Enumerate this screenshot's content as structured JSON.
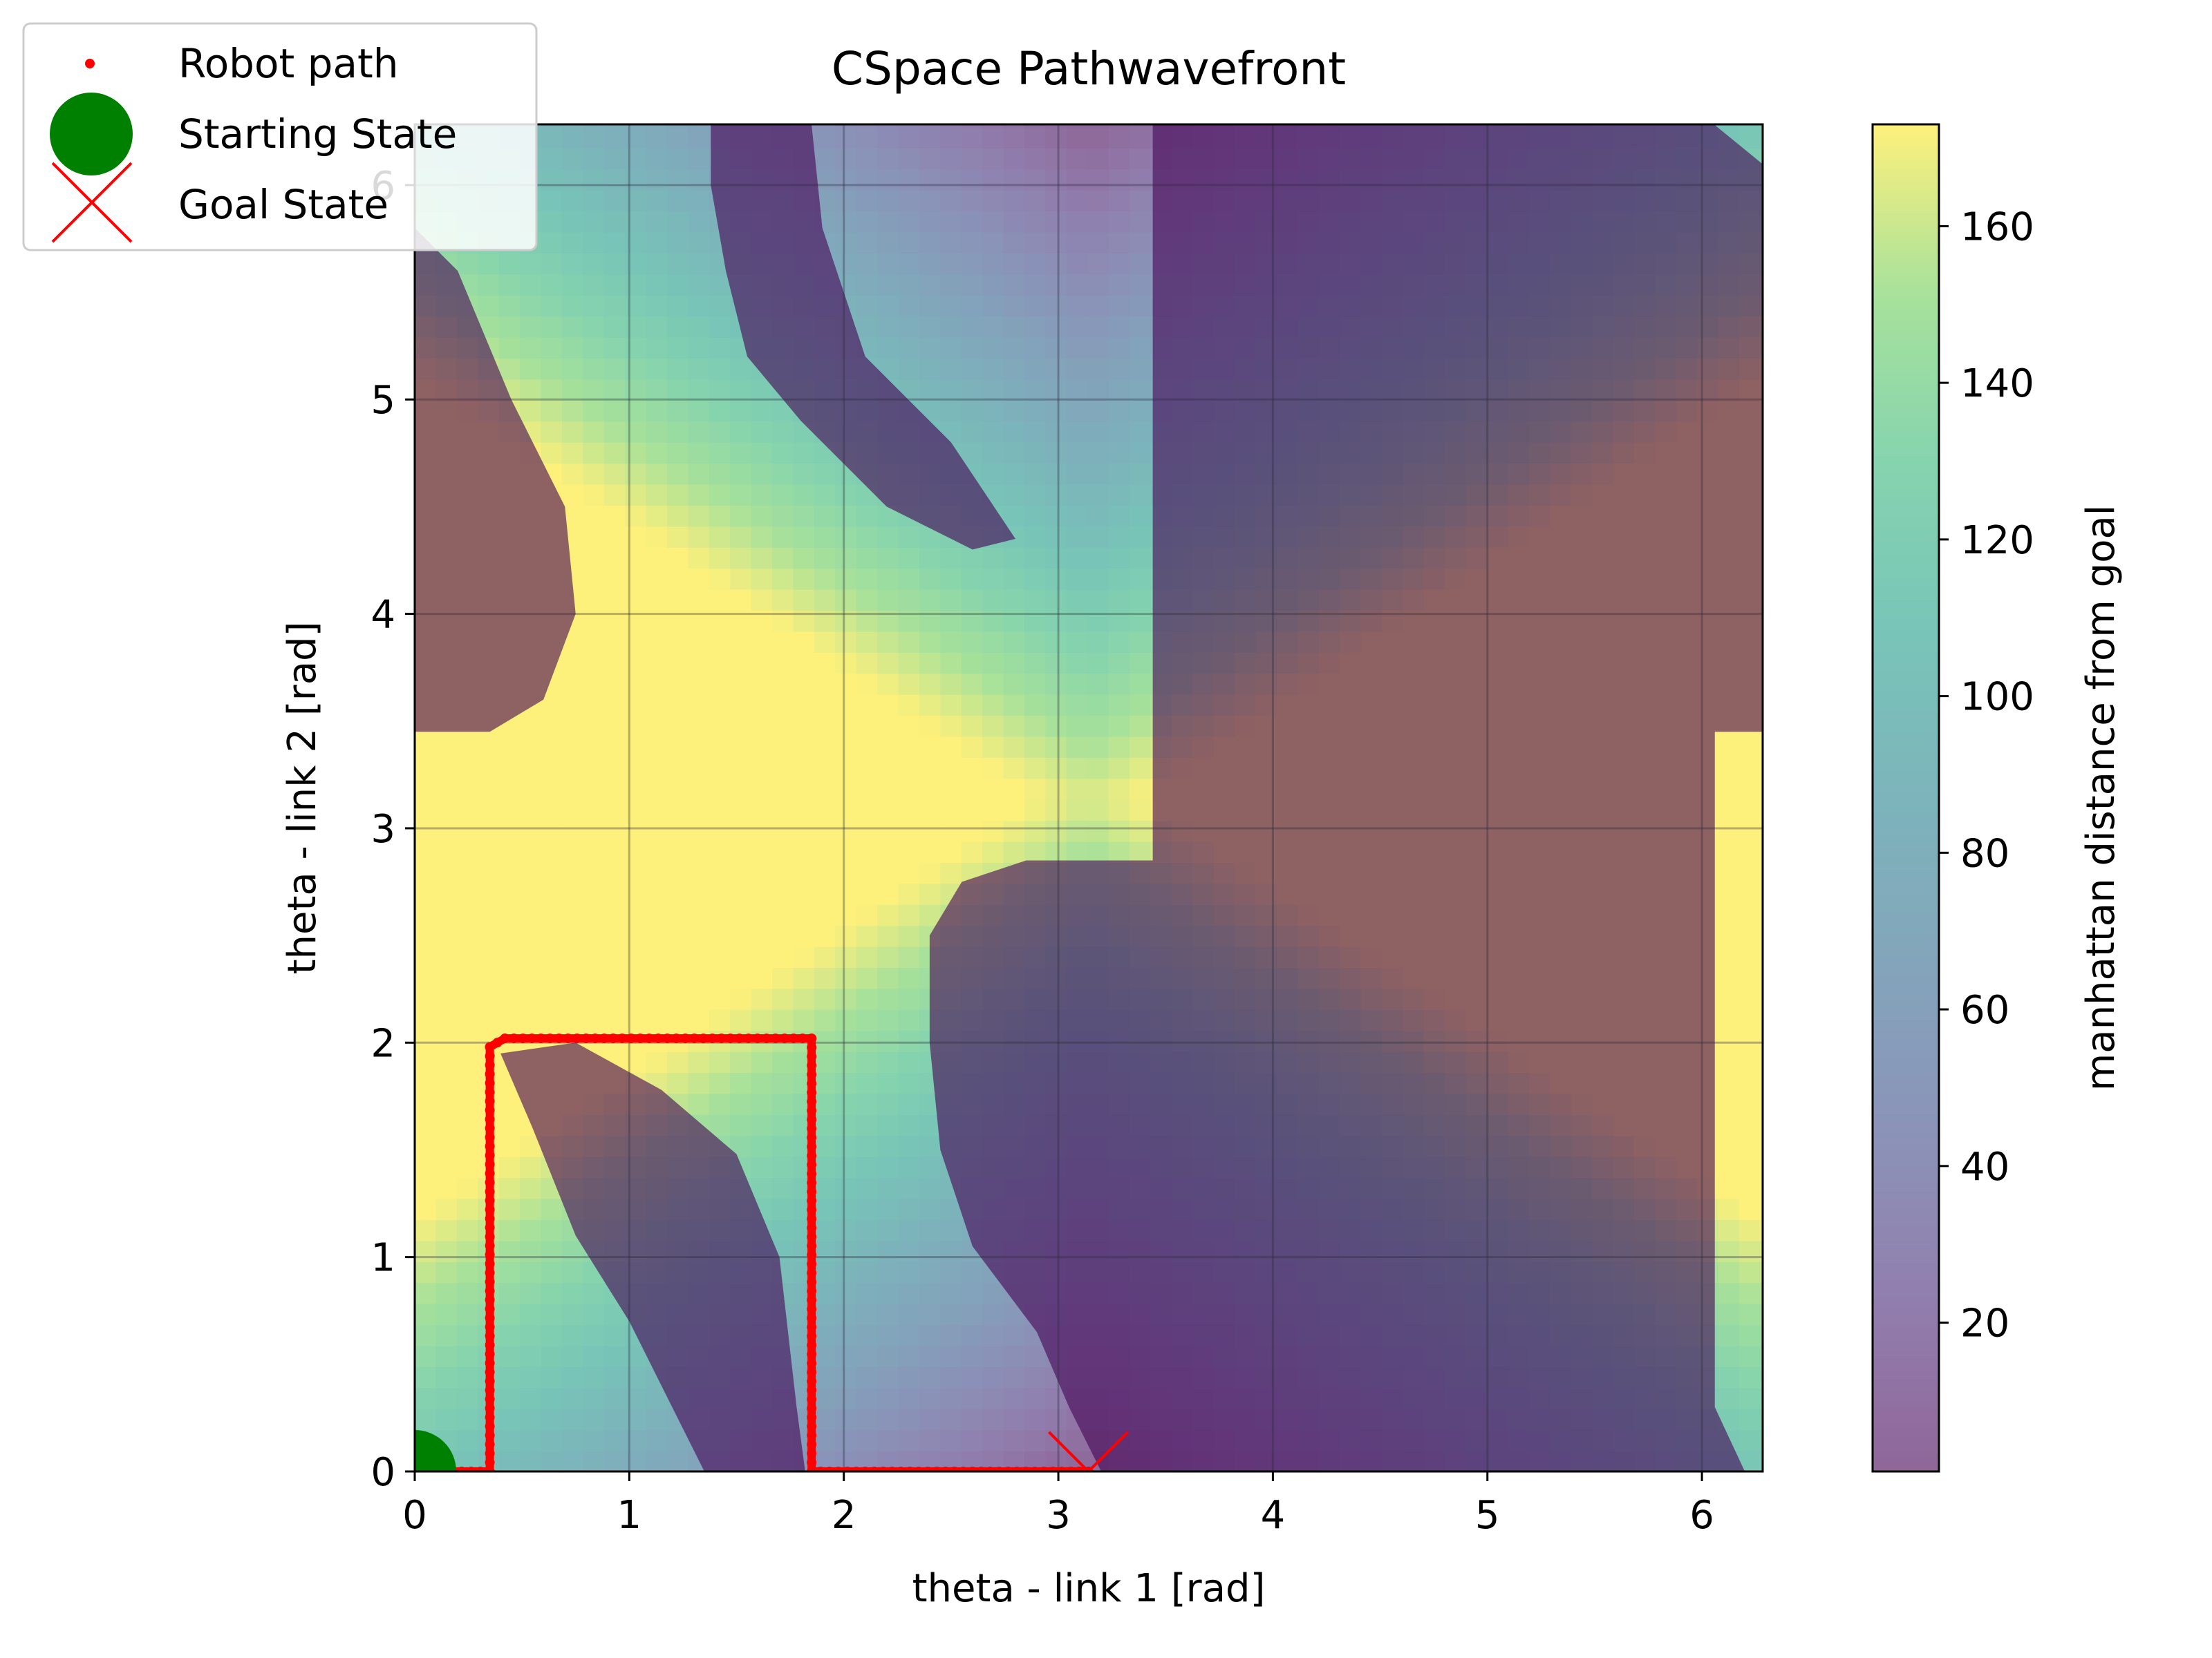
{
  "chart_data": {
    "type": "heatmap",
    "title": "CSpace Pathwavefront",
    "xlabel": "theta - link 1 [rad]",
    "ylabel": "theta - link 2 [rad]",
    "xlim": [
      0,
      6.2832
    ],
    "ylim": [
      0,
      6.2832
    ],
    "x_ticks": [
      0,
      1,
      2,
      3,
      4,
      5,
      6
    ],
    "y_ticks": [
      0,
      1,
      2,
      3,
      4,
      5,
      6
    ],
    "x_tick_labels": [
      "0",
      "1",
      "2",
      "3",
      "4",
      "5",
      "6"
    ],
    "y_tick_labels": [
      "0",
      "1",
      "2",
      "3",
      "4",
      "5",
      "6"
    ],
    "grid": true,
    "colormap": "viridis",
    "alpha": 0.6,
    "colorbar": {
      "label": "manhattan distance from goal",
      "range": [
        1,
        173
      ],
      "ticks": [
        20,
        40,
        60,
        80,
        100,
        120,
        140,
        160
      ],
      "tick_labels": [
        "20",
        "40",
        "60",
        "80",
        "100",
        "120",
        "140",
        "160"
      ]
    },
    "obstacle_value": 1,
    "obstacles": [
      {
        "name": "upper-left-obstacle",
        "polygon": [
          [
            0,
            5.8
          ],
          [
            0.2,
            5.6
          ],
          [
            0.45,
            5.0
          ],
          [
            0.7,
            4.5
          ],
          [
            0.75,
            4.0
          ],
          [
            0.6,
            3.6
          ],
          [
            0.35,
            3.45
          ],
          [
            0,
            3.45
          ]
        ]
      },
      {
        "name": "top-middle-obstacle",
        "polygon": [
          [
            1.38,
            6.28
          ],
          [
            1.85,
            6.28
          ],
          [
            1.9,
            5.8
          ],
          [
            2.1,
            5.2
          ],
          [
            2.5,
            4.8
          ],
          [
            2.8,
            4.35
          ],
          [
            2.6,
            4.3
          ],
          [
            2.2,
            4.5
          ],
          [
            1.8,
            4.9
          ],
          [
            1.55,
            5.2
          ],
          [
            1.45,
            5.6
          ],
          [
            1.38,
            6.0
          ]
        ]
      },
      {
        "name": "center-band-obstacle",
        "polygon": [
          [
            0.4,
            1.95
          ],
          [
            0.75,
            2.0
          ],
          [
            1.15,
            1.78
          ],
          [
            1.5,
            1.48
          ],
          [
            1.7,
            1.0
          ],
          [
            1.78,
            0.3
          ],
          [
            1.82,
            0
          ],
          [
            1.35,
            0
          ],
          [
            1.2,
            0.3
          ],
          [
            1.0,
            0.7
          ],
          [
            0.75,
            1.1
          ],
          [
            0.55,
            1.6
          ]
        ]
      },
      {
        "name": "right-main-obstacle",
        "polygon": [
          [
            3.44,
            6.28
          ],
          [
            6.06,
            6.28
          ],
          [
            6.28,
            6.1
          ],
          [
            6.28,
            3.45
          ],
          [
            6.06,
            3.45
          ],
          [
            6.06,
            0.3
          ],
          [
            6.2,
            0
          ],
          [
            3.2,
            0
          ],
          [
            3.05,
            0.3
          ],
          [
            2.9,
            0.65
          ],
          [
            2.6,
            1.05
          ],
          [
            2.45,
            1.5
          ],
          [
            2.4,
            2.0
          ],
          [
            2.4,
            2.5
          ],
          [
            2.55,
            2.75
          ],
          [
            2.85,
            2.85
          ],
          [
            3.44,
            2.85
          ]
        ]
      }
    ],
    "series": [
      {
        "name": "Robot path",
        "type": "line",
        "color": "#ff0000",
        "marker": "dot",
        "x": [
          0.0,
          0.35,
          0.35,
          0.42,
          1.85,
          1.85,
          3.14
        ],
        "y": [
          0.0,
          0.0,
          1.98,
          2.02,
          2.02,
          0.0,
          0.0
        ]
      },
      {
        "name": "Starting State",
        "type": "scatter",
        "color": "#008000",
        "marker": "circle",
        "x": [
          0.0
        ],
        "y": [
          0.0
        ]
      },
      {
        "name": "Goal State",
        "type": "scatter",
        "color": "#ff0000",
        "marker": "x",
        "x": [
          3.14
        ],
        "y": [
          0.0
        ]
      }
    ],
    "legend": {
      "position": "top-left",
      "entries": [
        "Robot path",
        "Starting State",
        "Goal State"
      ]
    }
  }
}
